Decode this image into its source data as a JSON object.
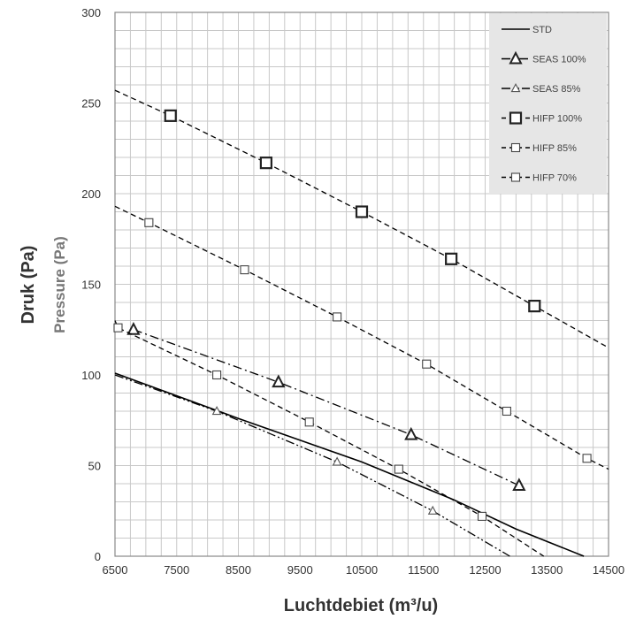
{
  "chart_data": {
    "type": "line",
    "xlabel": "Luchtdebiet (m³/u)",
    "ylabel": "Druk (Pa)",
    "ylabel_secondary": "Pressure (Pa)",
    "xlim": [
      6500,
      14500
    ],
    "ylim": [
      0,
      300
    ],
    "x_ticks": [
      "6500",
      "7500",
      "8500",
      "9500",
      "10500",
      "11500",
      "12500",
      "13500",
      "14500"
    ],
    "y_ticks": [
      "0",
      "50",
      "100",
      "150",
      "200",
      "250",
      "300"
    ],
    "grid": true,
    "legend_position": "top-right",
    "series": [
      {
        "name": "STD",
        "style": "solid",
        "marker": "none",
        "stroke": "#000000",
        "x": [
          6500,
          8500,
          10500,
          12000,
          13000,
          14100
        ],
        "y": [
          101,
          76,
          52,
          31,
          15,
          0
        ]
      },
      {
        "name": "SEAS 100%",
        "style": "dashdot",
        "marker": "triangle",
        "markerSize": "large",
        "stroke": "#000000",
        "x": [
          6800,
          9150,
          11300,
          13050
        ],
        "y": [
          125,
          96,
          67,
          39
        ]
      },
      {
        "name": "SEAS 85%",
        "style": "dashdotdot",
        "marker": "triangle",
        "markerSize": "small",
        "stroke": "#000000",
        "x": [
          6500,
          8150,
          10100,
          11650,
          12900
        ],
        "y": [
          100,
          80,
          52,
          25,
          0
        ]
      },
      {
        "name": "HIFP 100%",
        "style": "dashed",
        "marker": "square",
        "markerSize": "large",
        "stroke": "#000000",
        "x": [
          6500,
          7400,
          8950,
          10500,
          11950,
          13300,
          14500
        ],
        "y": [
          257,
          243,
          217,
          190,
          164,
          138,
          115
        ]
      },
      {
        "name": "HIFP 85%",
        "style": "dashed",
        "marker": "square",
        "markerSize": "small",
        "stroke": "#000000",
        "x": [
          6500,
          7050,
          8600,
          10100,
          11550,
          12850,
          14150,
          14500
        ],
        "y": [
          193,
          184,
          158,
          132,
          106,
          80,
          54,
          48
        ]
      },
      {
        "name": "HIFP 70%",
        "style": "dashed",
        "marker": "square",
        "markerSize": "small",
        "stroke": "#000000",
        "x": [
          6500,
          6550,
          8150,
          9650,
          11100,
          12450,
          13450
        ],
        "y": [
          130,
          126,
          100,
          74,
          48,
          22,
          0
        ]
      }
    ]
  },
  "colors": {
    "grid": "#c8c8c8",
    "axis": "#888888",
    "legend_bg": "#e6e6e6"
  }
}
